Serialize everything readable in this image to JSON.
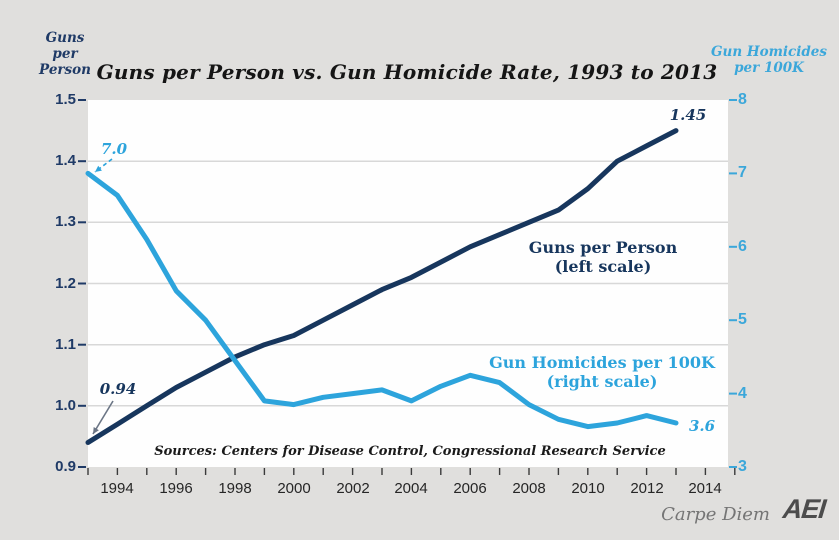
{
  "title": "Guns per Person vs. Gun Homicide Rate, 1993 to 2013",
  "left_axis": {
    "title_lines": [
      "Guns",
      "per",
      "Person"
    ],
    "ticks": [
      "1.5",
      "1.4",
      "1.3",
      "1.2",
      "1.1",
      "1.0",
      "0.9"
    ],
    "grid_values": [
      1.0,
      1.1,
      1.2,
      1.3,
      1.4
    ]
  },
  "right_axis": {
    "title_lines": [
      "Gun Homicides",
      "per 100K"
    ],
    "ticks": [
      "8",
      "7",
      "6",
      "5",
      "4",
      "3"
    ]
  },
  "x_axis": {
    "tick_labels": [
      "1994",
      "1996",
      "1998",
      "2000",
      "2002",
      "2004",
      "2006",
      "2008",
      "2010",
      "2012",
      "2014"
    ],
    "minor_tick_start": 1993,
    "minor_tick_end": 2015
  },
  "series_labels": {
    "guns": [
      "Guns per Person",
      "(left scale)"
    ],
    "homicides": [
      "Gun Homicides per 100K",
      "(right scale)"
    ]
  },
  "annotations": {
    "homicide_start": "7.0",
    "guns_start": "0.94",
    "guns_end": "1.45",
    "homicide_end": "3.6"
  },
  "sources": "Sources: Centers for Disease Control, Congressional Research Service",
  "footer": {
    "brand": "Carpe Diem",
    "logo": "AEI"
  },
  "colors": {
    "navy": "#17365d",
    "light_blue": "#2da4dc",
    "right_tick": "#3ba7da",
    "left_tick": "#1f3a66",
    "grid": "#d8d8d8",
    "plot_bg": "#fefefe",
    "bg": "#e0dfdd",
    "x_tick": "#3a3a3a",
    "arrow_gray": "#6b7585"
  },
  "chart_data": {
    "type": "line",
    "title": "Guns per Person vs. Gun Homicide Rate, 1993 to 2013",
    "x": [
      1993,
      1994,
      1995,
      1996,
      1997,
      1998,
      1999,
      2000,
      2001,
      2002,
      2003,
      2004,
      2005,
      2006,
      2007,
      2008,
      2009,
      2010,
      2011,
      2012,
      2013
    ],
    "series": [
      {
        "name": "Guns per Person (left scale)",
        "axis": "left",
        "color": "#17365d",
        "values": [
          0.94,
          0.97,
          1.0,
          1.03,
          1.055,
          1.08,
          1.1,
          1.115,
          1.14,
          1.165,
          1.19,
          1.21,
          1.235,
          1.26,
          1.28,
          1.3,
          1.32,
          1.355,
          1.4,
          1.425,
          1.45
        ]
      },
      {
        "name": "Gun Homicides per 100K (right scale)",
        "axis": "right",
        "color": "#2da4dc",
        "values": [
          7.0,
          6.7,
          6.1,
          5.4,
          5.0,
          4.45,
          3.9,
          3.85,
          3.95,
          4.0,
          4.05,
          3.9,
          4.1,
          4.25,
          4.15,
          3.85,
          3.65,
          3.55,
          3.6,
          3.7,
          3.6
        ]
      }
    ],
    "left_ylim": [
      0.9,
      1.5
    ],
    "right_ylim": [
      3,
      8
    ],
    "xlim": [
      1993,
      2014.8
    ],
    "grid": "horizontal",
    "legend_position": "inline-labels"
  }
}
